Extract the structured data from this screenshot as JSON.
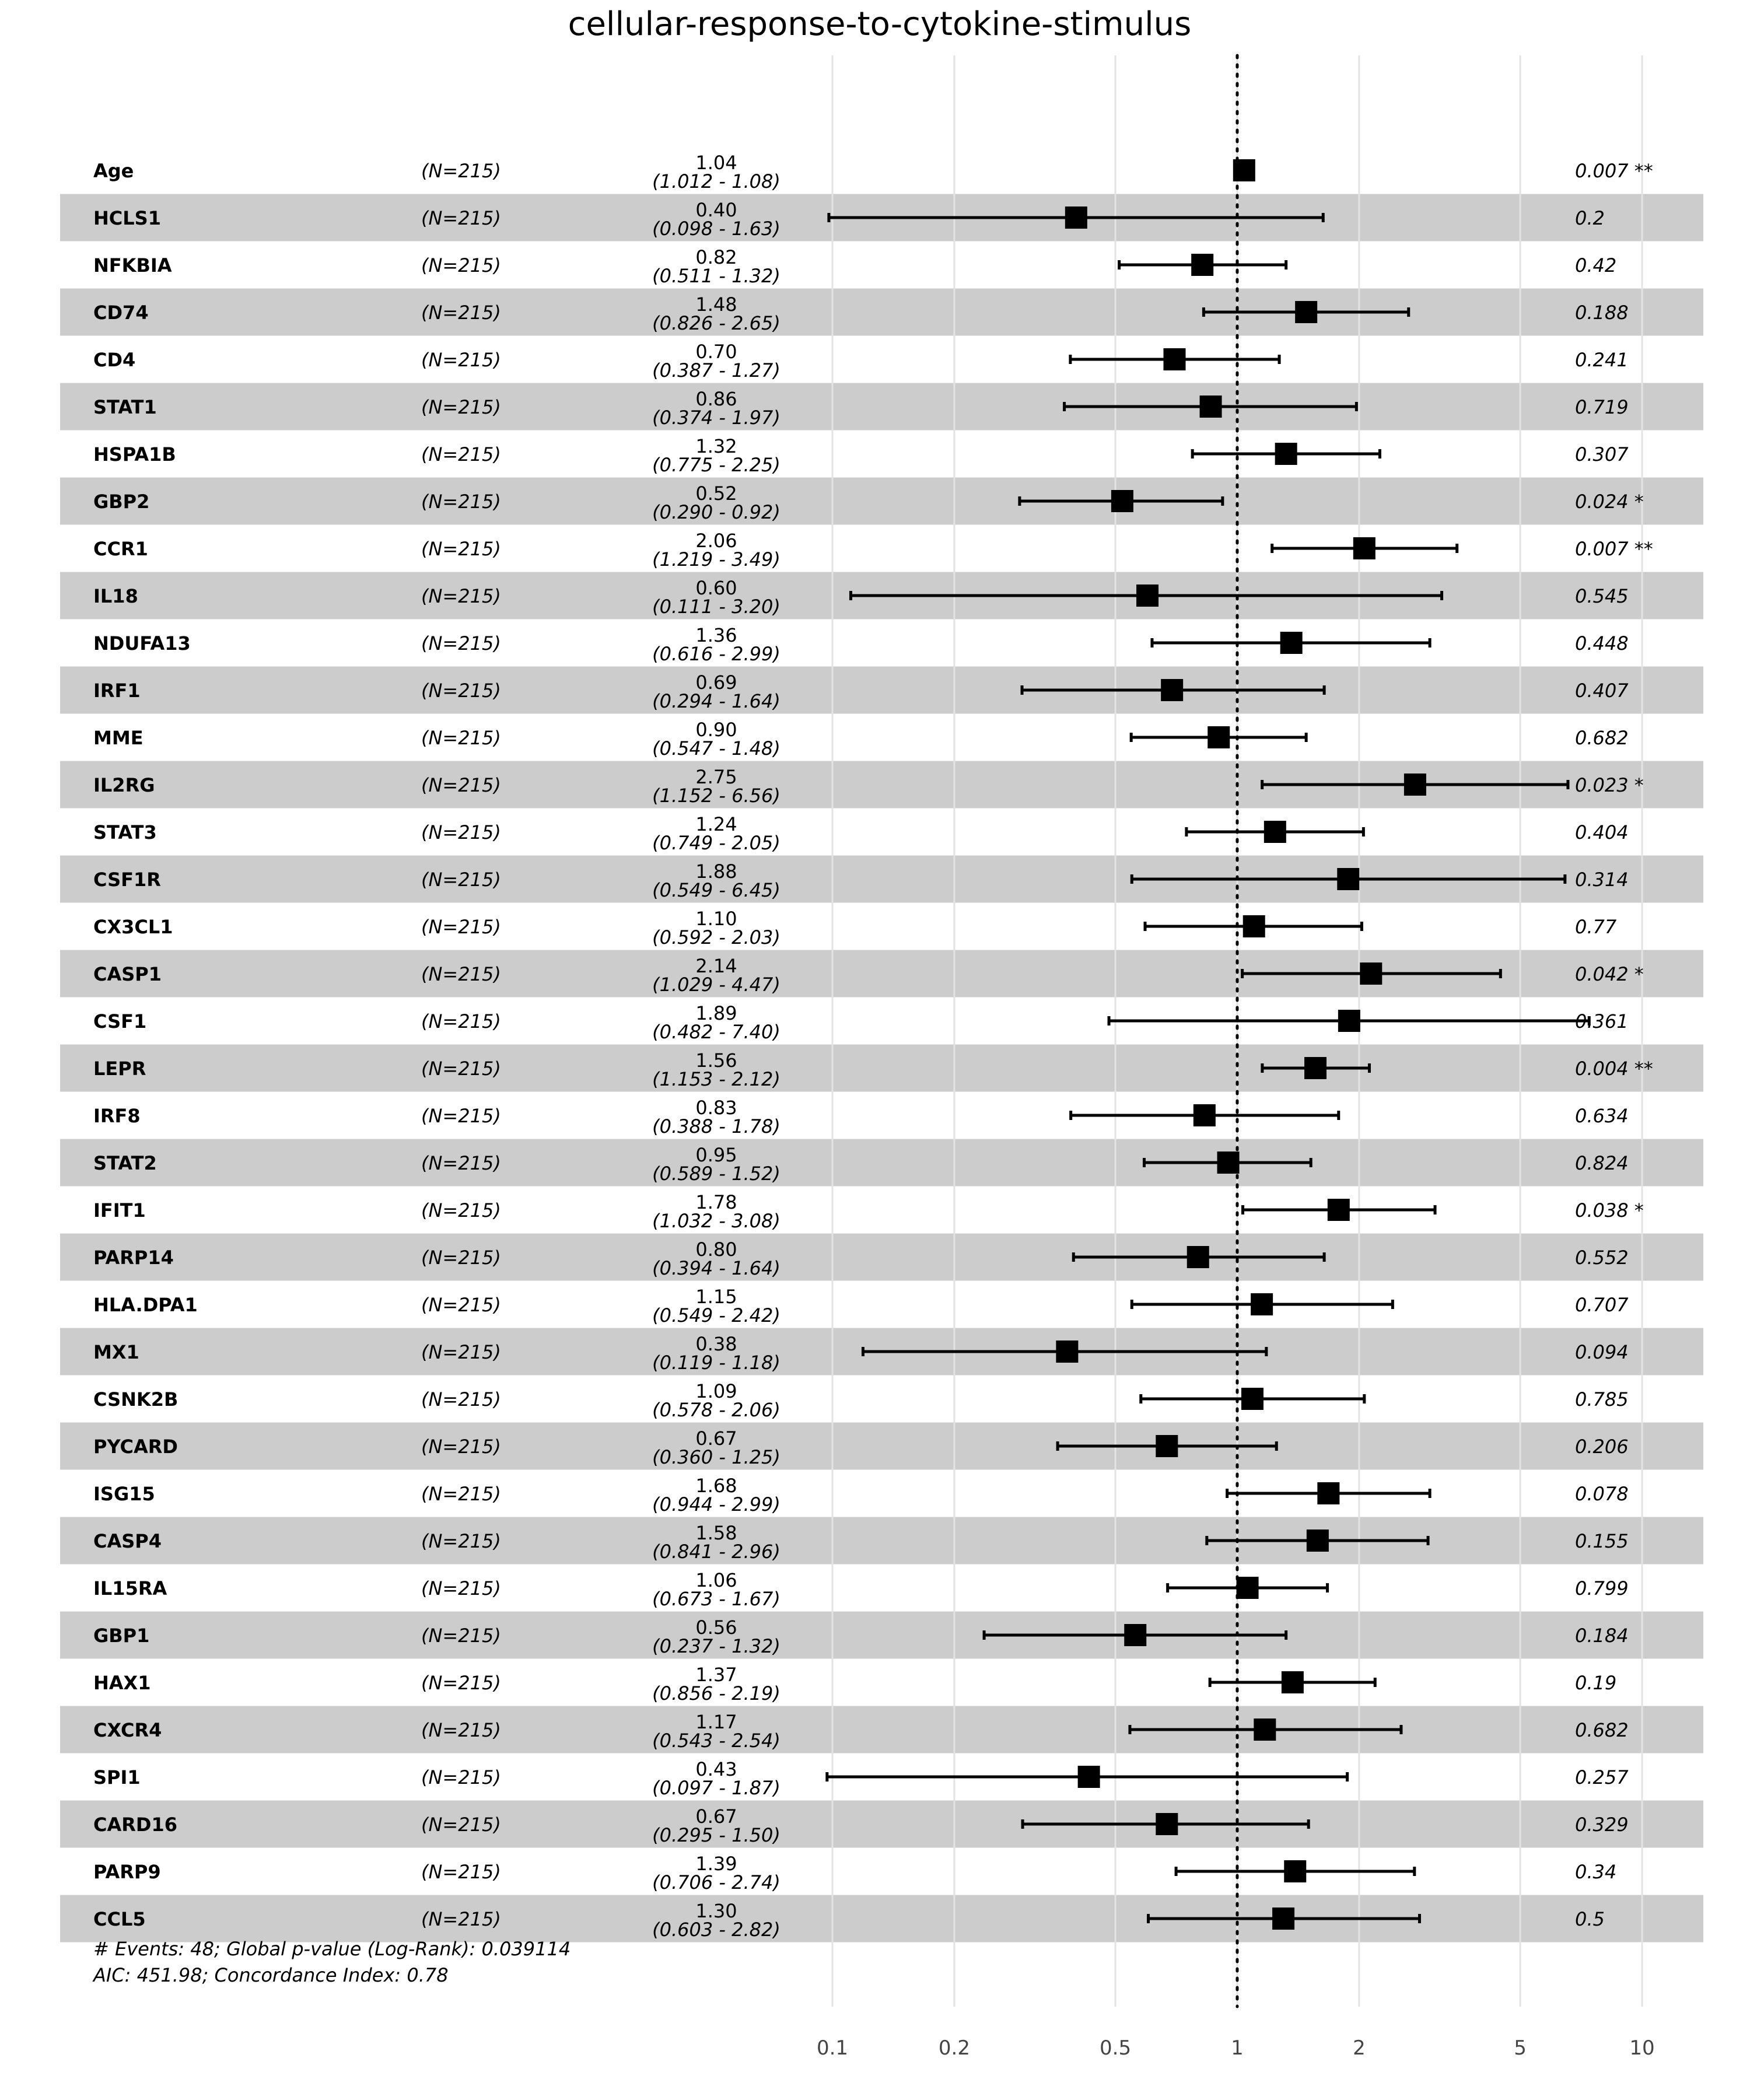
{
  "chart_data": {
    "type": "forest",
    "title": "cellular-response-to-cytokine-stimulus",
    "xscale": "log",
    "xlim": [
      0.1,
      10
    ],
    "xticks": [
      "0.1",
      "0.2",
      "0.5",
      "1",
      "2",
      "5",
      "10"
    ],
    "reference_line": 1,
    "rows": [
      {
        "name": "Age",
        "n": "(N=215)",
        "hr": "1.04",
        "ci": "(1.012 - 1.08)",
        "hr_v": 1.04,
        "lo": 1.012,
        "hi": 1.08,
        "p": "0.007 **"
      },
      {
        "name": "HCLS1",
        "n": "(N=215)",
        "hr": "0.40",
        "ci": "(0.098 - 1.63)",
        "hr_v": 0.4,
        "lo": 0.098,
        "hi": 1.63,
        "p": "0.2"
      },
      {
        "name": "NFKBIA",
        "n": "(N=215)",
        "hr": "0.82",
        "ci": "(0.511 - 1.32)",
        "hr_v": 0.82,
        "lo": 0.511,
        "hi": 1.32,
        "p": "0.42"
      },
      {
        "name": "CD74",
        "n": "(N=215)",
        "hr": "1.48",
        "ci": "(0.826 - 2.65)",
        "hr_v": 1.48,
        "lo": 0.826,
        "hi": 2.65,
        "p": "0.188"
      },
      {
        "name": "CD4",
        "n": "(N=215)",
        "hr": "0.70",
        "ci": "(0.387 - 1.27)",
        "hr_v": 0.7,
        "lo": 0.387,
        "hi": 1.27,
        "p": "0.241"
      },
      {
        "name": "STAT1",
        "n": "(N=215)",
        "hr": "0.86",
        "ci": "(0.374 - 1.97)",
        "hr_v": 0.86,
        "lo": 0.374,
        "hi": 1.97,
        "p": "0.719"
      },
      {
        "name": "HSPA1B",
        "n": "(N=215)",
        "hr": "1.32",
        "ci": "(0.775 - 2.25)",
        "hr_v": 1.32,
        "lo": 0.775,
        "hi": 2.25,
        "p": "0.307"
      },
      {
        "name": "GBP2",
        "n": "(N=215)",
        "hr": "0.52",
        "ci": "(0.290 - 0.92)",
        "hr_v": 0.52,
        "lo": 0.29,
        "hi": 0.92,
        "p": "0.024 *"
      },
      {
        "name": "CCR1",
        "n": "(N=215)",
        "hr": "2.06",
        "ci": "(1.219 - 3.49)",
        "hr_v": 2.06,
        "lo": 1.219,
        "hi": 3.49,
        "p": "0.007 **"
      },
      {
        "name": "IL18",
        "n": "(N=215)",
        "hr": "0.60",
        "ci": "(0.111 - 3.20)",
        "hr_v": 0.6,
        "lo": 0.111,
        "hi": 3.2,
        "p": "0.545"
      },
      {
        "name": "NDUFA13",
        "n": "(N=215)",
        "hr": "1.36",
        "ci": "(0.616 - 2.99)",
        "hr_v": 1.36,
        "lo": 0.616,
        "hi": 2.99,
        "p": "0.448"
      },
      {
        "name": "IRF1",
        "n": "(N=215)",
        "hr": "0.69",
        "ci": "(0.294 - 1.64)",
        "hr_v": 0.69,
        "lo": 0.294,
        "hi": 1.64,
        "p": "0.407"
      },
      {
        "name": "MME",
        "n": "(N=215)",
        "hr": "0.90",
        "ci": "(0.547 - 1.48)",
        "hr_v": 0.9,
        "lo": 0.547,
        "hi": 1.48,
        "p": "0.682"
      },
      {
        "name": "IL2RG",
        "n": "(N=215)",
        "hr": "2.75",
        "ci": "(1.152 - 6.56)",
        "hr_v": 2.75,
        "lo": 1.152,
        "hi": 6.56,
        "p": "0.023 *"
      },
      {
        "name": "STAT3",
        "n": "(N=215)",
        "hr": "1.24",
        "ci": "(0.749 - 2.05)",
        "hr_v": 1.24,
        "lo": 0.749,
        "hi": 2.05,
        "p": "0.404"
      },
      {
        "name": "CSF1R",
        "n": "(N=215)",
        "hr": "1.88",
        "ci": "(0.549 - 6.45)",
        "hr_v": 1.88,
        "lo": 0.549,
        "hi": 6.45,
        "p": "0.314"
      },
      {
        "name": "CX3CL1",
        "n": "(N=215)",
        "hr": "1.10",
        "ci": "(0.592 - 2.03)",
        "hr_v": 1.1,
        "lo": 0.592,
        "hi": 2.03,
        "p": "0.77"
      },
      {
        "name": "CASP1",
        "n": "(N=215)",
        "hr": "2.14",
        "ci": "(1.029 - 4.47)",
        "hr_v": 2.14,
        "lo": 1.029,
        "hi": 4.47,
        "p": "0.042 *"
      },
      {
        "name": "CSF1",
        "n": "(N=215)",
        "hr": "1.89",
        "ci": "(0.482 - 7.40)",
        "hr_v": 1.89,
        "lo": 0.482,
        "hi": 7.4,
        "p": "0.361"
      },
      {
        "name": "LEPR",
        "n": "(N=215)",
        "hr": "1.56",
        "ci": "(1.153 - 2.12)",
        "hr_v": 1.56,
        "lo": 1.153,
        "hi": 2.12,
        "p": "0.004 **"
      },
      {
        "name": "IRF8",
        "n": "(N=215)",
        "hr": "0.83",
        "ci": "(0.388 - 1.78)",
        "hr_v": 0.83,
        "lo": 0.388,
        "hi": 1.78,
        "p": "0.634"
      },
      {
        "name": "STAT2",
        "n": "(N=215)",
        "hr": "0.95",
        "ci": "(0.589 - 1.52)",
        "hr_v": 0.95,
        "lo": 0.589,
        "hi": 1.52,
        "p": "0.824"
      },
      {
        "name": "IFIT1",
        "n": "(N=215)",
        "hr": "1.78",
        "ci": "(1.032 - 3.08)",
        "hr_v": 1.78,
        "lo": 1.032,
        "hi": 3.08,
        "p": "0.038 *"
      },
      {
        "name": "PARP14",
        "n": "(N=215)",
        "hr": "0.80",
        "ci": "(0.394 - 1.64)",
        "hr_v": 0.8,
        "lo": 0.394,
        "hi": 1.64,
        "p": "0.552"
      },
      {
        "name": "HLA.DPA1",
        "n": "(N=215)",
        "hr": "1.15",
        "ci": "(0.549 - 2.42)",
        "hr_v": 1.15,
        "lo": 0.549,
        "hi": 2.42,
        "p": "0.707"
      },
      {
        "name": "MX1",
        "n": "(N=215)",
        "hr": "0.38",
        "ci": "(0.119 - 1.18)",
        "hr_v": 0.38,
        "lo": 0.119,
        "hi": 1.18,
        "p": "0.094"
      },
      {
        "name": "CSNK2B",
        "n": "(N=215)",
        "hr": "1.09",
        "ci": "(0.578 - 2.06)",
        "hr_v": 1.09,
        "lo": 0.578,
        "hi": 2.06,
        "p": "0.785"
      },
      {
        "name": "PYCARD",
        "n": "(N=215)",
        "hr": "0.67",
        "ci": "(0.360 - 1.25)",
        "hr_v": 0.67,
        "lo": 0.36,
        "hi": 1.25,
        "p": "0.206"
      },
      {
        "name": "ISG15",
        "n": "(N=215)",
        "hr": "1.68",
        "ci": "(0.944 - 2.99)",
        "hr_v": 1.68,
        "lo": 0.944,
        "hi": 2.99,
        "p": "0.078"
      },
      {
        "name": "CASP4",
        "n": "(N=215)",
        "hr": "1.58",
        "ci": "(0.841 - 2.96)",
        "hr_v": 1.58,
        "lo": 0.841,
        "hi": 2.96,
        "p": "0.155"
      },
      {
        "name": "IL15RA",
        "n": "(N=215)",
        "hr": "1.06",
        "ci": "(0.673 - 1.67)",
        "hr_v": 1.06,
        "lo": 0.673,
        "hi": 1.67,
        "p": "0.799"
      },
      {
        "name": "GBP1",
        "n": "(N=215)",
        "hr": "0.56",
        "ci": "(0.237 - 1.32)",
        "hr_v": 0.56,
        "lo": 0.237,
        "hi": 1.32,
        "p": "0.184"
      },
      {
        "name": "HAX1",
        "n": "(N=215)",
        "hr": "1.37",
        "ci": "(0.856 - 2.19)",
        "hr_v": 1.37,
        "lo": 0.856,
        "hi": 2.19,
        "p": "0.19"
      },
      {
        "name": "CXCR4",
        "n": "(N=215)",
        "hr": "1.17",
        "ci": "(0.543 - 2.54)",
        "hr_v": 1.17,
        "lo": 0.543,
        "hi": 2.54,
        "p": "0.682"
      },
      {
        "name": "SPI1",
        "n": "(N=215)",
        "hr": "0.43",
        "ci": "(0.097 - 1.87)",
        "hr_v": 0.43,
        "lo": 0.097,
        "hi": 1.87,
        "p": "0.257"
      },
      {
        "name": "CARD16",
        "n": "(N=215)",
        "hr": "0.67",
        "ci": "(0.295 - 1.50)",
        "hr_v": 0.67,
        "lo": 0.295,
        "hi": 1.5,
        "p": "0.329"
      },
      {
        "name": "PARP9",
        "n": "(N=215)",
        "hr": "1.39",
        "ci": "(0.706 - 2.74)",
        "hr_v": 1.39,
        "lo": 0.706,
        "hi": 2.74,
        "p": "0.34"
      },
      {
        "name": "CCL5",
        "n": "(N=215)",
        "hr": "1.30",
        "ci": "(0.603 - 2.82)",
        "hr_v": 1.3,
        "lo": 0.603,
        "hi": 2.82,
        "p": "0.5"
      }
    ],
    "footer": [
      "# Events: 48; Global p-value (Log-Rank): 0.039114",
      "AIC: 451.98; Concordance Index: 0.78"
    ]
  }
}
